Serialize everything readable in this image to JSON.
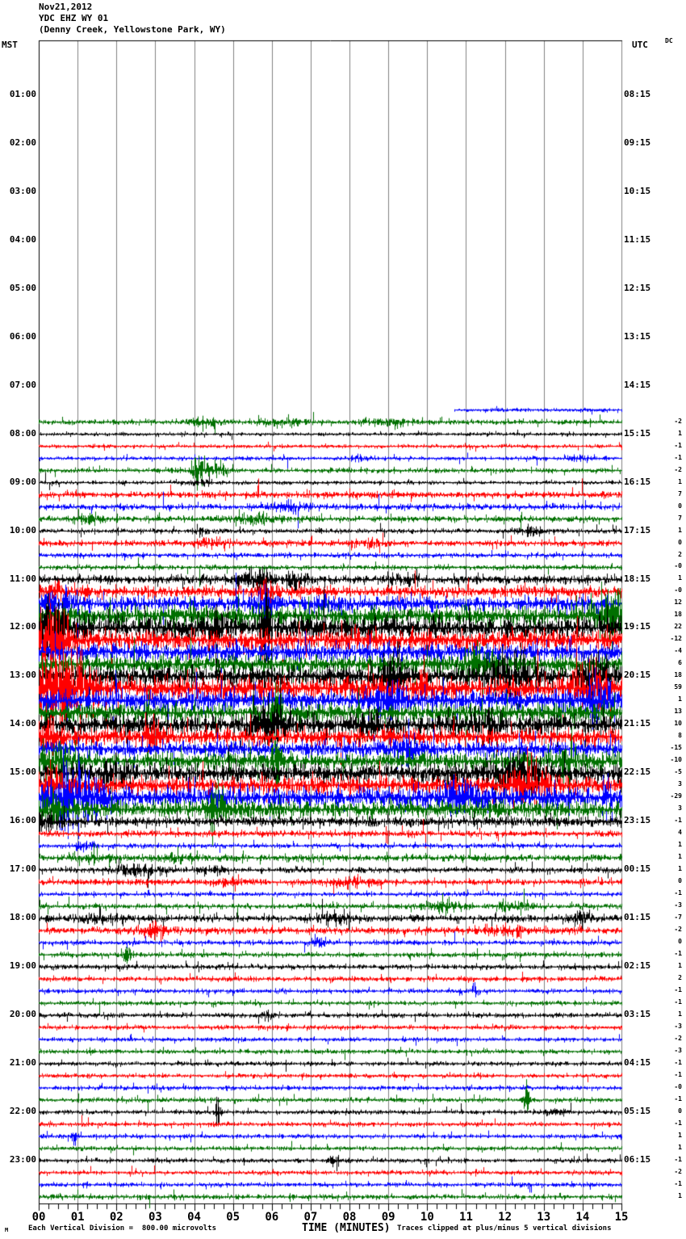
{
  "header": {
    "date": "Nov21,2012",
    "station": "YDC EHZ WY 01",
    "location": "(Denny Creek, Yellowstone Park, WY)"
  },
  "axes": {
    "left_label": "MST",
    "right_label": "UTC",
    "dc_label": "DC",
    "x_axis_title": "TIME (MINUTES)",
    "x_ticks": [
      "00",
      "01",
      "02",
      "03",
      "04",
      "05",
      "06",
      "07",
      "08",
      "09",
      "10",
      "11",
      "12",
      "13",
      "14",
      "15"
    ],
    "left_times": [
      "01:00",
      "02:00",
      "03:00",
      "04:00",
      "05:00",
      "06:00",
      "07:00",
      "08:00",
      "09:00",
      "10:00",
      "11:00",
      "12:00",
      "13:00",
      "14:00",
      "15:00",
      "16:00",
      "17:00",
      "18:00",
      "19:00",
      "20:00",
      "21:00",
      "22:00",
      "23:00"
    ],
    "right_times": [
      "08:15",
      "09:15",
      "10:15",
      "11:15",
      "12:15",
      "13:15",
      "14:15",
      "15:15",
      "16:15",
      "17:15",
      "18:15",
      "19:15",
      "20:15",
      "21:15",
      "22:15",
      "23:15",
      "00:15",
      "01:15",
      "02:15",
      "03:15",
      "04:15",
      "05:15",
      "06:15"
    ]
  },
  "footer": {
    "corner": "M",
    "scale_note": "Each Vertical Division =  800.00 microvolts",
    "clip_note": "Traces clipped at plus/minus 5 vertical divisions"
  },
  "chart_data": {
    "type": "line",
    "subtype": "helicorder-seismogram",
    "title": "Nov21,2012 YDC EHZ WY 01 (Denny Creek, Yellowstone Park, WY)",
    "xlabel": "TIME (MINUTES)",
    "x_range_minutes": [
      0,
      15
    ],
    "minutes_per_line": 15,
    "timezone_left": "MST",
    "timezone_right": "UTC",
    "microvolts_per_division": 800.0,
    "clip_divisions": 5,
    "grid_color": "#808080",
    "trace_colors": {
      "k": "#000000",
      "r": "#ff0000",
      "b": "#0000ff",
      "g": "#007000"
    },
    "rows_note": "t=MST line start, c=color, dc=printed DC offset (null=not shown), a=background noise half-amplitude px, e=events [minute,amp_px,sigma_min], s=start minute of partial line",
    "rows": [
      {
        "t": "07:30",
        "c": "b",
        "dc": null,
        "a": 1.6,
        "s": 10.7
      },
      {
        "t": "07:45",
        "c": "g",
        "dc": "-2",
        "a": 2.0,
        "e": [
          [
            4.3,
            3,
            0.3
          ],
          [
            6.3,
            3,
            0.4
          ],
          [
            9.0,
            2,
            0.5
          ]
        ]
      },
      {
        "t": "08:00",
        "c": "k",
        "dc": "1",
        "a": 1.5
      },
      {
        "t": "08:15",
        "c": "r",
        "dc": "-1",
        "a": 1.6
      },
      {
        "t": "08:30",
        "c": "b",
        "dc": "-1",
        "a": 1.6,
        "e": [
          [
            8.3,
            3,
            0.15
          ],
          [
            13.9,
            3,
            0.2
          ]
        ]
      },
      {
        "t": "08:45",
        "c": "g",
        "dc": "-2",
        "a": 2.0,
        "e": [
          [
            4.1,
            16,
            0.08
          ],
          [
            4.4,
            6,
            0.3
          ]
        ]
      },
      {
        "t": "09:00",
        "c": "k",
        "dc": "1",
        "a": 1.6,
        "e": [
          [
            4.15,
            3,
            0.2
          ]
        ]
      },
      {
        "t": "09:15",
        "c": "r",
        "dc": "7",
        "a": 2.6
      },
      {
        "t": "09:30",
        "c": "b",
        "dc": "0",
        "a": 2.4,
        "e": [
          [
            6.5,
            3,
            0.4
          ]
        ]
      },
      {
        "t": "09:45",
        "c": "g",
        "dc": "7",
        "a": 2.4,
        "e": [
          [
            1.3,
            3,
            0.3
          ],
          [
            5.6,
            4,
            0.4
          ]
        ]
      },
      {
        "t": "10:00",
        "c": "k",
        "dc": "1",
        "a": 2.0,
        "e": [
          [
            4.2,
            4,
            0.1
          ],
          [
            12.7,
            4,
            0.3
          ]
        ]
      },
      {
        "t": "10:15",
        "c": "r",
        "dc": "0",
        "a": 2.4,
        "e": [
          [
            4.4,
            4,
            0.3
          ],
          [
            8.5,
            3,
            0.3
          ]
        ]
      },
      {
        "t": "10:30",
        "c": "b",
        "dc": "2",
        "a": 2.0
      },
      {
        "t": "10:45",
        "c": "g",
        "dc": "-0",
        "a": 2.0
      },
      {
        "t": "11:00",
        "c": "k",
        "dc": "1",
        "a": 3.5,
        "e": [
          [
            5.6,
            6,
            0.3
          ],
          [
            6.6,
            8,
            0.15
          ],
          [
            9.4,
            4,
            0.3
          ]
        ]
      },
      {
        "t": "11:15",
        "c": "r",
        "dc": "-0",
        "a": 4.5,
        "e": [
          [
            0.3,
            6,
            0.3
          ],
          [
            5.8,
            8,
            0.2
          ]
        ]
      },
      {
        "t": "11:30",
        "c": "b",
        "dc": "12",
        "a": 6,
        "e": [
          [
            0.5,
            6,
            0.4
          ],
          [
            5.8,
            14,
            0.15
          ]
        ]
      },
      {
        "t": "11:45",
        "c": "g",
        "dc": "18",
        "a": 8,
        "e": [
          [
            14.7,
            20,
            0.3
          ]
        ]
      },
      {
        "t": "12:00",
        "c": "k",
        "dc": "22",
        "a": 9,
        "e": [
          [
            0.2,
            20,
            0.3
          ],
          [
            4.6,
            15,
            0.2
          ],
          [
            5.85,
            40,
            0.1
          ]
        ]
      },
      {
        "t": "12:15",
        "c": "r",
        "dc": "-12",
        "a": 8,
        "e": [
          [
            0.3,
            25,
            0.3
          ]
        ]
      },
      {
        "t": "12:30",
        "c": "b",
        "dc": "-4",
        "a": 7
      },
      {
        "t": "12:45",
        "c": "g",
        "dc": "6",
        "a": 7,
        "e": [
          [
            11.3,
            10,
            0.3
          ]
        ]
      },
      {
        "t": "13:00",
        "c": "k",
        "dc": "18",
        "a": 8,
        "e": [
          [
            9.2,
            12,
            0.3
          ],
          [
            12.2,
            15,
            0.4
          ],
          [
            14.4,
            20,
            0.3
          ]
        ]
      },
      {
        "t": "13:15",
        "c": "r",
        "dc": "59",
        "a": 9,
        "e": [
          [
            0.6,
            35,
            0.5
          ],
          [
            9.85,
            22,
            0.08
          ],
          [
            14.2,
            15,
            0.3
          ]
        ]
      },
      {
        "t": "13:30",
        "c": "b",
        "dc": "1",
        "a": 8,
        "e": [
          [
            9.0,
            12,
            0.3
          ],
          [
            14.5,
            15,
            0.3
          ]
        ]
      },
      {
        "t": "13:45",
        "c": "g",
        "dc": "13",
        "a": 7,
        "e": [
          [
            6.1,
            20,
            0.08
          ]
        ]
      },
      {
        "t": "14:00",
        "c": "k",
        "dc": "10",
        "a": 8,
        "e": [
          [
            5.9,
            14,
            0.4
          ],
          [
            8.4,
            12,
            0.25
          ],
          [
            11.5,
            10,
            0.3
          ]
        ]
      },
      {
        "t": "14:15",
        "c": "r",
        "dc": "8",
        "a": 7,
        "e": [
          [
            0.3,
            15,
            0.2
          ],
          [
            2.9,
            12,
            0.2
          ]
        ]
      },
      {
        "t": "14:30",
        "c": "b",
        "dc": "-15",
        "a": 6,
        "e": [
          [
            9.3,
            8,
            0.3
          ]
        ]
      },
      {
        "t": "14:45",
        "c": "g",
        "dc": "-10",
        "a": 7,
        "e": [
          [
            0.4,
            12,
            0.3
          ],
          [
            6.15,
            25,
            0.08
          ],
          [
            13.6,
            15,
            0.2
          ]
        ]
      },
      {
        "t": "15:00",
        "c": "k",
        "dc": "-5",
        "a": 7,
        "e": [
          [
            2.0,
            8,
            0.3
          ],
          [
            12.4,
            12,
            0.5
          ]
        ]
      },
      {
        "t": "15:15",
        "c": "r",
        "dc": "3",
        "a": 7,
        "e": [
          [
            0.2,
            10,
            0.3
          ],
          [
            12.6,
            14,
            0.4
          ]
        ]
      },
      {
        "t": "15:30",
        "c": "b",
        "dc": "-29",
        "a": 8,
        "e": [
          [
            0.9,
            24,
            0.5
          ],
          [
            10.9,
            10,
            0.3
          ],
          [
            14.6,
            16,
            0.1
          ]
        ]
      },
      {
        "t": "15:45",
        "c": "g",
        "dc": "3",
        "a": 7,
        "e": [
          [
            0.3,
            10,
            0.3
          ],
          [
            4.55,
            24,
            0.12
          ]
        ]
      },
      {
        "t": "16:00",
        "c": "k",
        "dc": "-1",
        "a": 4,
        "e": [
          [
            0.2,
            6,
            0.3
          ]
        ]
      },
      {
        "t": "16:15",
        "c": "r",
        "dc": "4",
        "a": 2.6
      },
      {
        "t": "16:30",
        "c": "b",
        "dc": "1",
        "a": 2.0,
        "e": [
          [
            1.2,
            3,
            0.2
          ]
        ]
      },
      {
        "t": "16:45",
        "c": "g",
        "dc": "1",
        "a": 2.8,
        "e": [
          [
            1.5,
            3,
            0.3
          ],
          [
            3.5,
            3,
            0.3
          ]
        ]
      },
      {
        "t": "17:00",
        "c": "k",
        "dc": "1",
        "a": 2.2,
        "e": [
          [
            2.6,
            4,
            0.4
          ],
          [
            4.5,
            3,
            0.2
          ]
        ]
      },
      {
        "t": "17:15",
        "c": "r",
        "dc": "0",
        "a": 2.4,
        "e": [
          [
            5.0,
            3,
            0.3
          ],
          [
            8.0,
            3,
            0.4
          ]
        ]
      },
      {
        "t": "17:30",
        "c": "b",
        "dc": "-1",
        "a": 1.8
      },
      {
        "t": "17:45",
        "c": "g",
        "dc": "-3",
        "a": 2.2,
        "e": [
          [
            10.4,
            6,
            0.3
          ],
          [
            12.2,
            4,
            0.3
          ]
        ]
      },
      {
        "t": "18:00",
        "c": "k",
        "dc": "-7",
        "a": 2.8,
        "e": [
          [
            1.6,
            4,
            0.3
          ],
          [
            7.6,
            4,
            0.3
          ],
          [
            13.9,
            5,
            0.2
          ]
        ]
      },
      {
        "t": "18:15",
        "c": "r",
        "dc": "-2",
        "a": 2.8,
        "e": [
          [
            3.0,
            4,
            0.3
          ],
          [
            12.0,
            4,
            0.4
          ]
        ]
      },
      {
        "t": "18:30",
        "c": "b",
        "dc": "0",
        "a": 2.0,
        "e": [
          [
            7.2,
            4,
            0.15
          ]
        ]
      },
      {
        "t": "18:45",
        "c": "g",
        "dc": "-1",
        "a": 2.0,
        "e": [
          [
            2.25,
            7,
            0.08
          ]
        ]
      },
      {
        "t": "19:00",
        "c": "k",
        "dc": "1",
        "a": 2.0
      },
      {
        "t": "19:15",
        "c": "r",
        "dc": "2",
        "a": 2.0
      },
      {
        "t": "19:30",
        "c": "b",
        "dc": "-1",
        "a": 1.8,
        "e": [
          [
            11.2,
            6,
            0.07
          ]
        ]
      },
      {
        "t": "19:45",
        "c": "g",
        "dc": "-1",
        "a": 1.8
      },
      {
        "t": "20:00",
        "c": "k",
        "dc": "1",
        "a": 2.0,
        "e": [
          [
            5.9,
            4,
            0.08
          ]
        ]
      },
      {
        "t": "20:15",
        "c": "r",
        "dc": "-3",
        "a": 1.8
      },
      {
        "t": "20:30",
        "c": "b",
        "dc": "-2",
        "a": 1.8
      },
      {
        "t": "20:45",
        "c": "g",
        "dc": "-3",
        "a": 1.8
      },
      {
        "t": "21:00",
        "c": "k",
        "dc": "-1",
        "a": 1.8
      },
      {
        "t": "21:15",
        "c": "r",
        "dc": "-1",
        "a": 1.8
      },
      {
        "t": "21:30",
        "c": "b",
        "dc": "-0",
        "a": 1.8
      },
      {
        "t": "21:45",
        "c": "g",
        "dc": "-1",
        "a": 1.8,
        "e": [
          [
            12.55,
            15,
            0.06
          ]
        ]
      },
      {
        "t": "22:00",
        "c": "k",
        "dc": "0",
        "a": 1.8,
        "e": [
          [
            4.6,
            14,
            0.05
          ],
          [
            13.3,
            4,
            0.15
          ]
        ]
      },
      {
        "t": "22:15",
        "c": "r",
        "dc": "-1",
        "a": 1.8
      },
      {
        "t": "22:30",
        "c": "b",
        "dc": "1",
        "a": 1.8,
        "e": [
          [
            0.9,
            7,
            0.06
          ]
        ]
      },
      {
        "t": "22:45",
        "c": "g",
        "dc": "1",
        "a": 1.8
      },
      {
        "t": "23:00",
        "c": "k",
        "dc": "-1",
        "a": 1.8,
        "e": [
          [
            7.6,
            4,
            0.1
          ]
        ]
      },
      {
        "t": "23:15",
        "c": "r",
        "dc": "-2",
        "a": 1.8
      },
      {
        "t": "23:30",
        "c": "b",
        "dc": "-1",
        "a": 1.8
      },
      {
        "t": "23:45",
        "c": "g",
        "dc": "1",
        "a": 2.0
      }
    ]
  }
}
